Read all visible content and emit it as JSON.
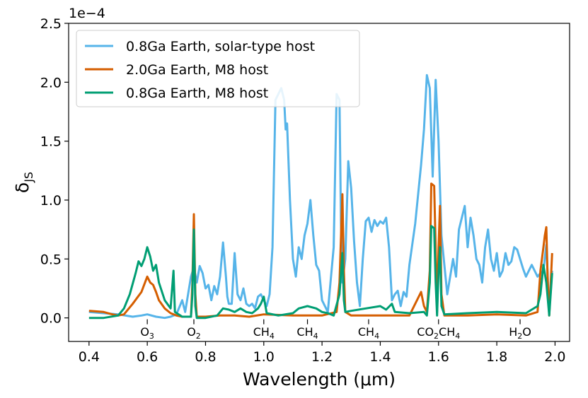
{
  "chart_data": {
    "type": "line",
    "title": "",
    "xlabel": "Wavelength (μm)",
    "ylabel": "δ",
    "ylabel_sub": "JS",
    "y_scale_note": "1e−4",
    "xlim": [
      0.33,
      2.05
    ],
    "ylim": [
      -0.2,
      2.5
    ],
    "x_ticks": [
      0.4,
      0.6,
      0.8,
      1.0,
      1.2,
      1.4,
      1.6,
      1.8,
      2.0
    ],
    "x_tick_labels": [
      "0.4",
      "0.6",
      "0.8",
      "1.0",
      "1.2",
      "1.4",
      "1.6",
      "1.8",
      "2.0"
    ],
    "y_ticks": [
      0.0,
      0.5,
      1.0,
      1.5,
      2.0,
      2.5
    ],
    "y_tick_labels": [
      "0.0",
      "0.5",
      "1.0",
      "1.5",
      "2.0",
      "2.5"
    ],
    "grid": false,
    "legend_position": "top-left",
    "molecule_markers": [
      {
        "x": 0.6,
        "base": "O",
        "sub": "3",
        "rest": ""
      },
      {
        "x": 0.76,
        "base": "O",
        "sub": "2",
        "rest": ""
      },
      {
        "x": 1.0,
        "base": "CH",
        "sub": "4",
        "rest": ""
      },
      {
        "x": 1.15,
        "base": "CH",
        "sub": "4",
        "rest": ""
      },
      {
        "x": 1.36,
        "base": "CH",
        "sub": "4",
        "rest": ""
      },
      {
        "x": 1.6,
        "base": "CO",
        "sub": "2",
        "rest": "CH",
        "sub2": "4"
      },
      {
        "x": 1.88,
        "base": "H",
        "sub": "2",
        "rest": "O"
      }
    ],
    "series": [
      {
        "name": "0.8Ga Earth, solar-type host",
        "color": "#56B4E9",
        "points": [
          [
            0.4,
            0.05
          ],
          [
            0.45,
            0.04
          ],
          [
            0.5,
            0.03
          ],
          [
            0.55,
            0.01
          ],
          [
            0.58,
            0.02
          ],
          [
            0.6,
            0.03
          ],
          [
            0.63,
            0.01
          ],
          [
            0.66,
            0.0
          ],
          [
            0.68,
            0.01
          ],
          [
            0.7,
            0.03
          ],
          [
            0.72,
            0.15
          ],
          [
            0.73,
            0.05
          ],
          [
            0.74,
            0.2
          ],
          [
            0.75,
            0.35
          ],
          [
            0.76,
            0.43
          ],
          [
            0.77,
            0.3
          ],
          [
            0.78,
            0.44
          ],
          [
            0.79,
            0.38
          ],
          [
            0.8,
            0.25
          ],
          [
            0.81,
            0.28
          ],
          [
            0.82,
            0.15
          ],
          [
            0.83,
            0.27
          ],
          [
            0.84,
            0.2
          ],
          [
            0.85,
            0.35
          ],
          [
            0.86,
            0.64
          ],
          [
            0.87,
            0.35
          ],
          [
            0.875,
            0.18
          ],
          [
            0.88,
            0.12
          ],
          [
            0.89,
            0.12
          ],
          [
            0.9,
            0.55
          ],
          [
            0.91,
            0.2
          ],
          [
            0.92,
            0.15
          ],
          [
            0.93,
            0.25
          ],
          [
            0.94,
            0.12
          ],
          [
            0.95,
            0.1
          ],
          [
            0.96,
            0.12
          ],
          [
            0.97,
            0.08
          ],
          [
            0.98,
            0.18
          ],
          [
            0.99,
            0.2
          ],
          [
            1.0,
            0.15
          ],
          [
            1.01,
            0.1
          ],
          [
            1.02,
            0.2
          ],
          [
            1.03,
            0.6
          ],
          [
            1.04,
            1.85
          ],
          [
            1.05,
            1.9
          ],
          [
            1.06,
            1.95
          ],
          [
            1.07,
            1.85
          ],
          [
            1.075,
            1.6
          ],
          [
            1.08,
            1.65
          ],
          [
            1.09,
            1.0
          ],
          [
            1.1,
            0.5
          ],
          [
            1.11,
            0.35
          ],
          [
            1.12,
            0.6
          ],
          [
            1.13,
            0.5
          ],
          [
            1.14,
            0.7
          ],
          [
            1.15,
            0.8
          ],
          [
            1.16,
            1.0
          ],
          [
            1.17,
            0.7
          ],
          [
            1.18,
            0.45
          ],
          [
            1.19,
            0.4
          ],
          [
            1.2,
            0.15
          ],
          [
            1.21,
            0.1
          ],
          [
            1.22,
            0.05
          ],
          [
            1.24,
            0.6
          ],
          [
            1.25,
            1.9
          ],
          [
            1.26,
            1.85
          ],
          [
            1.265,
            0.8
          ],
          [
            1.27,
            0.3
          ],
          [
            1.28,
            0.5
          ],
          [
            1.29,
            1.33
          ],
          [
            1.3,
            1.1
          ],
          [
            1.31,
            0.65
          ],
          [
            1.32,
            0.3
          ],
          [
            1.33,
            0.1
          ],
          [
            1.34,
            0.5
          ],
          [
            1.35,
            0.82
          ],
          [
            1.36,
            0.85
          ],
          [
            1.37,
            0.73
          ],
          [
            1.38,
            0.83
          ],
          [
            1.39,
            0.78
          ],
          [
            1.4,
            0.82
          ],
          [
            1.41,
            0.8
          ],
          [
            1.42,
            0.85
          ],
          [
            1.43,
            0.6
          ],
          [
            1.44,
            0.15
          ],
          [
            1.45,
            0.2
          ],
          [
            1.46,
            0.23
          ],
          [
            1.47,
            0.1
          ],
          [
            1.48,
            0.22
          ],
          [
            1.49,
            0.18
          ],
          [
            1.5,
            0.45
          ],
          [
            1.52,
            0.8
          ],
          [
            1.54,
            1.3
          ],
          [
            1.55,
            1.6
          ],
          [
            1.56,
            2.06
          ],
          [
            1.57,
            1.95
          ],
          [
            1.58,
            1.2
          ],
          [
            1.59,
            2.02
          ],
          [
            1.6,
            1.5
          ],
          [
            1.61,
            0.7
          ],
          [
            1.62,
            0.45
          ],
          [
            1.63,
            0.2
          ],
          [
            1.64,
            0.35
          ],
          [
            1.65,
            0.5
          ],
          [
            1.66,
            0.35
          ],
          [
            1.67,
            0.75
          ],
          [
            1.68,
            0.85
          ],
          [
            1.69,
            0.95
          ],
          [
            1.7,
            0.6
          ],
          [
            1.71,
            0.85
          ],
          [
            1.72,
            0.7
          ],
          [
            1.73,
            0.5
          ],
          [
            1.74,
            0.45
          ],
          [
            1.75,
            0.3
          ],
          [
            1.76,
            0.6
          ],
          [
            1.77,
            0.75
          ],
          [
            1.78,
            0.5
          ],
          [
            1.79,
            0.4
          ],
          [
            1.8,
            0.55
          ],
          [
            1.81,
            0.35
          ],
          [
            1.82,
            0.4
          ],
          [
            1.83,
            0.55
          ],
          [
            1.84,
            0.45
          ],
          [
            1.85,
            0.48
          ],
          [
            1.86,
            0.6
          ],
          [
            1.87,
            0.58
          ],
          [
            1.88,
            0.5
          ],
          [
            1.89,
            0.42
          ],
          [
            1.9,
            0.35
          ],
          [
            1.91,
            0.4
          ],
          [
            1.92,
            0.45
          ],
          [
            1.93,
            0.4
          ],
          [
            1.94,
            0.35
          ],
          [
            1.95,
            0.38
          ],
          [
            1.96,
            0.4
          ],
          [
            1.97,
            0.62
          ],
          [
            1.98,
            0.05
          ],
          [
            1.99,
            0.4
          ]
        ]
      },
      {
        "name": "2.0Ga Earth, M8 host",
        "color": "#D55E00",
        "points": [
          [
            0.4,
            0.06
          ],
          [
            0.45,
            0.05
          ],
          [
            0.48,
            0.03
          ],
          [
            0.5,
            0.02
          ],
          [
            0.52,
            0.03
          ],
          [
            0.55,
            0.12
          ],
          [
            0.58,
            0.22
          ],
          [
            0.6,
            0.35
          ],
          [
            0.61,
            0.3
          ],
          [
            0.62,
            0.28
          ],
          [
            0.63,
            0.22
          ],
          [
            0.64,
            0.15
          ],
          [
            0.66,
            0.08
          ],
          [
            0.68,
            0.04
          ],
          [
            0.7,
            0.02
          ],
          [
            0.72,
            0.01
          ],
          [
            0.75,
            0.01
          ],
          [
            0.755,
            0.3
          ],
          [
            0.76,
            0.88
          ],
          [
            0.765,
            0.2
          ],
          [
            0.77,
            0.01
          ],
          [
            0.8,
            0.01
          ],
          [
            0.85,
            0.02
          ],
          [
            0.9,
            0.02
          ],
          [
            0.95,
            0.01
          ],
          [
            1.0,
            0.03
          ],
          [
            1.1,
            0.02
          ],
          [
            1.2,
            0.02
          ],
          [
            1.25,
            0.05
          ],
          [
            1.26,
            0.3
          ],
          [
            1.27,
            1.05
          ],
          [
            1.275,
            0.4
          ],
          [
            1.28,
            0.05
          ],
          [
            1.3,
            0.02
          ],
          [
            1.4,
            0.02
          ],
          [
            1.5,
            0.02
          ],
          [
            1.54,
            0.22
          ],
          [
            1.55,
            0.1
          ],
          [
            1.56,
            0.05
          ],
          [
            1.57,
            0.4
          ],
          [
            1.575,
            1.14
          ],
          [
            1.585,
            1.12
          ],
          [
            1.59,
            0.6
          ],
          [
            1.595,
            0.05
          ],
          [
            1.6,
            0.6
          ],
          [
            1.605,
            0.95
          ],
          [
            1.61,
            0.2
          ],
          [
            1.62,
            0.02
          ],
          [
            1.7,
            0.02
          ],
          [
            1.8,
            0.03
          ],
          [
            1.9,
            0.02
          ],
          [
            1.94,
            0.05
          ],
          [
            1.95,
            0.4
          ],
          [
            1.96,
            0.6
          ],
          [
            1.965,
            0.7
          ],
          [
            1.97,
            0.77
          ],
          [
            1.975,
            0.3
          ],
          [
            1.98,
            0.02
          ],
          [
            1.99,
            0.55
          ]
        ]
      },
      {
        "name": "0.8Ga Earth, M8 host",
        "color": "#009E73",
        "points": [
          [
            0.4,
            0.0
          ],
          [
            0.45,
            0.0
          ],
          [
            0.5,
            0.02
          ],
          [
            0.52,
            0.08
          ],
          [
            0.54,
            0.2
          ],
          [
            0.56,
            0.38
          ],
          [
            0.57,
            0.48
          ],
          [
            0.58,
            0.44
          ],
          [
            0.59,
            0.5
          ],
          [
            0.6,
            0.6
          ],
          [
            0.61,
            0.52
          ],
          [
            0.62,
            0.4
          ],
          [
            0.63,
            0.45
          ],
          [
            0.64,
            0.3
          ],
          [
            0.66,
            0.15
          ],
          [
            0.68,
            0.08
          ],
          [
            0.69,
            0.4
          ],
          [
            0.695,
            0.05
          ],
          [
            0.72,
            0.01
          ],
          [
            0.75,
            0.01
          ],
          [
            0.755,
            0.2
          ],
          [
            0.76,
            0.75
          ],
          [
            0.765,
            0.1
          ],
          [
            0.77,
            0.0
          ],
          [
            0.8,
            0.0
          ],
          [
            0.84,
            0.02
          ],
          [
            0.86,
            0.08
          ],
          [
            0.88,
            0.07
          ],
          [
            0.9,
            0.05
          ],
          [
            0.92,
            0.08
          ],
          [
            0.94,
            0.05
          ],
          [
            0.96,
            0.04
          ],
          [
            0.98,
            0.08
          ],
          [
            0.99,
            0.12
          ],
          [
            1.0,
            0.18
          ],
          [
            1.01,
            0.04
          ],
          [
            1.05,
            0.02
          ],
          [
            1.1,
            0.04
          ],
          [
            1.12,
            0.08
          ],
          [
            1.15,
            0.1
          ],
          [
            1.18,
            0.08
          ],
          [
            1.2,
            0.05
          ],
          [
            1.22,
            0.04
          ],
          [
            1.24,
            0.02
          ],
          [
            1.26,
            0.2
          ],
          [
            1.27,
            0.55
          ],
          [
            1.275,
            0.15
          ],
          [
            1.28,
            0.05
          ],
          [
            1.3,
            0.06
          ],
          [
            1.35,
            0.08
          ],
          [
            1.4,
            0.1
          ],
          [
            1.42,
            0.07
          ],
          [
            1.44,
            0.12
          ],
          [
            1.45,
            0.05
          ],
          [
            1.5,
            0.04
          ],
          [
            1.55,
            0.05
          ],
          [
            1.56,
            0.02
          ],
          [
            1.57,
            0.3
          ],
          [
            1.575,
            0.78
          ],
          [
            1.585,
            0.76
          ],
          [
            1.59,
            0.3
          ],
          [
            1.595,
            0.02
          ],
          [
            1.6,
            0.4
          ],
          [
            1.605,
            0.6
          ],
          [
            1.61,
            0.1
          ],
          [
            1.62,
            0.03
          ],
          [
            1.7,
            0.04
          ],
          [
            1.8,
            0.05
          ],
          [
            1.9,
            0.04
          ],
          [
            1.94,
            0.1
          ],
          [
            1.95,
            0.2
          ],
          [
            1.96,
            0.45
          ],
          [
            1.97,
            0.3
          ],
          [
            1.98,
            0.02
          ],
          [
            1.99,
            0.38
          ]
        ]
      }
    ]
  }
}
